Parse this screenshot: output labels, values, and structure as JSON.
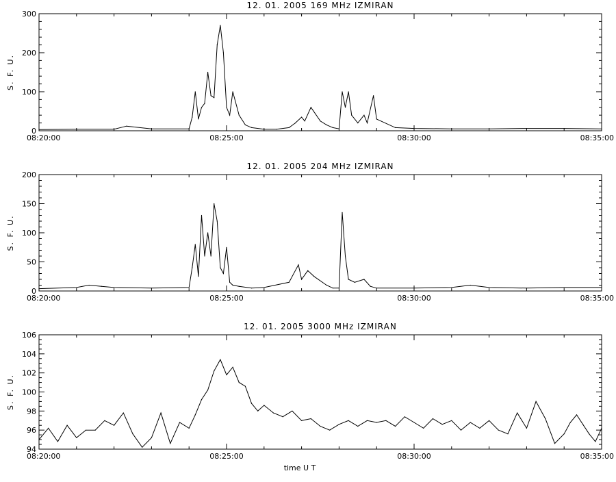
{
  "chart_data": [
    {
      "type": "line",
      "title": "12. 01. 2005   169 MHz   IZMIRAN",
      "ylabel": "S. F. U.",
      "xlabel": "",
      "xlim": [
        "08:20:00",
        "08:35:00"
      ],
      "xticks": [
        "08:20:00",
        "08:25:00",
        "08:30:00",
        "08:35:00"
      ],
      "ylim": [
        0,
        300
      ],
      "yticks": [
        "0",
        "100",
        "200",
        "300"
      ],
      "grid": false,
      "series": [
        {
          "x": [
            "08:20:00",
            "08:21:00",
            "08:22:00",
            "08:22:20",
            "08:23:00",
            "08:24:00",
            "08:24:05",
            "08:24:10",
            "08:24:15",
            "08:24:20",
            "08:24:25",
            "08:24:30",
            "08:24:35",
            "08:24:40",
            "08:24:45",
            "08:24:50",
            "08:24:55",
            "08:25:00",
            "08:25:05",
            "08:25:10",
            "08:25:20",
            "08:25:30",
            "08:25:40",
            "08:26:00",
            "08:26:20",
            "08:26:40",
            "08:26:50",
            "08:27:00",
            "08:27:05",
            "08:27:15",
            "08:27:30",
            "08:27:40",
            "08:27:50",
            "08:28:00",
            "08:28:05",
            "08:28:10",
            "08:28:15",
            "08:28:20",
            "08:28:30",
            "08:28:40",
            "08:28:45",
            "08:28:55",
            "08:29:00",
            "08:29:30",
            "08:30:00",
            "08:31:00",
            "08:32:00",
            "08:33:00",
            "08:34:00",
            "08:35:00"
          ],
          "y": [
            3,
            4,
            4,
            12,
            5,
            5,
            35,
            100,
            30,
            60,
            70,
            150,
            90,
            85,
            220,
            270,
            200,
            60,
            40,
            100,
            40,
            15,
            8,
            4,
            4,
            8,
            20,
            35,
            25,
            60,
            25,
            15,
            8,
            5,
            100,
            60,
            100,
            40,
            20,
            40,
            20,
            90,
            30,
            8,
            6,
            5,
            5,
            6,
            6,
            5
          ]
        }
      ]
    },
    {
      "type": "line",
      "title": "12. 01. 2005   204 MHz   IZMIRAN",
      "ylabel": "S. F. U.",
      "xlabel": "",
      "xlim": [
        "08:20:00",
        "08:35:00"
      ],
      "xticks": [
        "08:20:00",
        "08:25:00",
        "08:30:00",
        "08:35:00"
      ],
      "ylim": [
        0,
        200
      ],
      "yticks": [
        "0",
        "50",
        "100",
        "150",
        "200"
      ],
      "grid": false,
      "series": [
        {
          "x": [
            "08:20:00",
            "08:21:00",
            "08:21:20",
            "08:21:40",
            "08:22:00",
            "08:23:00",
            "08:24:00",
            "08:24:05",
            "08:24:10",
            "08:24:15",
            "08:24:20",
            "08:24:25",
            "08:24:30",
            "08:24:35",
            "08:24:40",
            "08:24:45",
            "08:24:50",
            "08:24:55",
            "08:25:00",
            "08:25:05",
            "08:25:10",
            "08:25:20",
            "08:25:40",
            "08:26:00",
            "08:26:40",
            "08:26:55",
            "08:27:00",
            "08:27:10",
            "08:27:20",
            "08:27:40",
            "08:27:50",
            "08:28:00",
            "08:28:05",
            "08:28:10",
            "08:28:15",
            "08:28:25",
            "08:28:40",
            "08:28:50",
            "08:29:00",
            "08:30:00",
            "08:31:00",
            "08:31:30",
            "08:32:00",
            "08:33:00",
            "08:34:00",
            "08:35:00"
          ],
          "y": [
            4,
            6,
            10,
            8,
            6,
            5,
            6,
            40,
            80,
            25,
            130,
            60,
            100,
            60,
            150,
            120,
            40,
            30,
            75,
            15,
            10,
            8,
            5,
            6,
            15,
            45,
            20,
            35,
            25,
            10,
            5,
            5,
            135,
            60,
            20,
            15,
            20,
            8,
            5,
            5,
            6,
            10,
            6,
            5,
            6,
            6
          ]
        }
      ]
    },
    {
      "type": "line",
      "title": "12. 01. 2005   3000 MHz   IZMIRAN",
      "ylabel": "S. F. U.",
      "xlabel": "time  U T",
      "xlim": [
        "08:20:00",
        "08:35:00"
      ],
      "xticks": [
        "08:20:00",
        "08:25:00",
        "08:30:00",
        "08:35:00"
      ],
      "ylim": [
        94,
        106
      ],
      "yticks": [
        "94",
        "96",
        "98",
        "100",
        "102",
        "104",
        "106"
      ],
      "grid": false,
      "series": [
        {
          "x": [
            "08:20:00",
            "08:20:15",
            "08:20:30",
            "08:20:45",
            "08:21:00",
            "08:21:15",
            "08:21:30",
            "08:21:45",
            "08:22:00",
            "08:22:15",
            "08:22:30",
            "08:22:45",
            "08:23:00",
            "08:23:15",
            "08:23:30",
            "08:23:45",
            "08:24:00",
            "08:24:10",
            "08:24:20",
            "08:24:30",
            "08:24:40",
            "08:24:50",
            "08:25:00",
            "08:25:10",
            "08:25:20",
            "08:25:30",
            "08:25:40",
            "08:25:50",
            "08:26:00",
            "08:26:15",
            "08:26:30",
            "08:26:45",
            "08:27:00",
            "08:27:15",
            "08:27:30",
            "08:27:45",
            "08:28:00",
            "08:28:15",
            "08:28:30",
            "08:28:45",
            "08:29:00",
            "08:29:15",
            "08:29:30",
            "08:29:45",
            "08:30:00",
            "08:30:15",
            "08:30:30",
            "08:30:45",
            "08:31:00",
            "08:31:15",
            "08:31:30",
            "08:31:45",
            "08:32:00",
            "08:32:15",
            "08:32:30",
            "08:32:45",
            "08:33:00",
            "08:33:15",
            "08:33:30",
            "08:33:45",
            "08:34:00",
            "08:34:10",
            "08:34:20",
            "08:34:30",
            "08:34:40",
            "08:34:50",
            "08:35:00"
          ],
          "y": [
            95,
            96.2,
            94.8,
            96.5,
            95.2,
            96,
            96,
            97,
            96.5,
            97.8,
            95.6,
            94.2,
            95.2,
            97.8,
            94.6,
            96.8,
            96.2,
            97.6,
            99.2,
            100.2,
            102.2,
            103.4,
            101.8,
            102.6,
            101,
            100.6,
            98.8,
            98,
            98.6,
            97.8,
            97.4,
            98,
            97,
            97.2,
            96.4,
            96,
            96.6,
            97,
            96.4,
            97,
            96.8,
            97,
            96.4,
            97.4,
            96.8,
            96.2,
            97.2,
            96.6,
            97,
            96,
            96.8,
            96.2,
            97,
            96,
            95.6,
            97.8,
            96.2,
            99,
            97.2,
            94.6,
            95.6,
            96.8,
            97.6,
            96.6,
            95.6,
            94.8,
            96.2
          ]
        }
      ]
    }
  ]
}
